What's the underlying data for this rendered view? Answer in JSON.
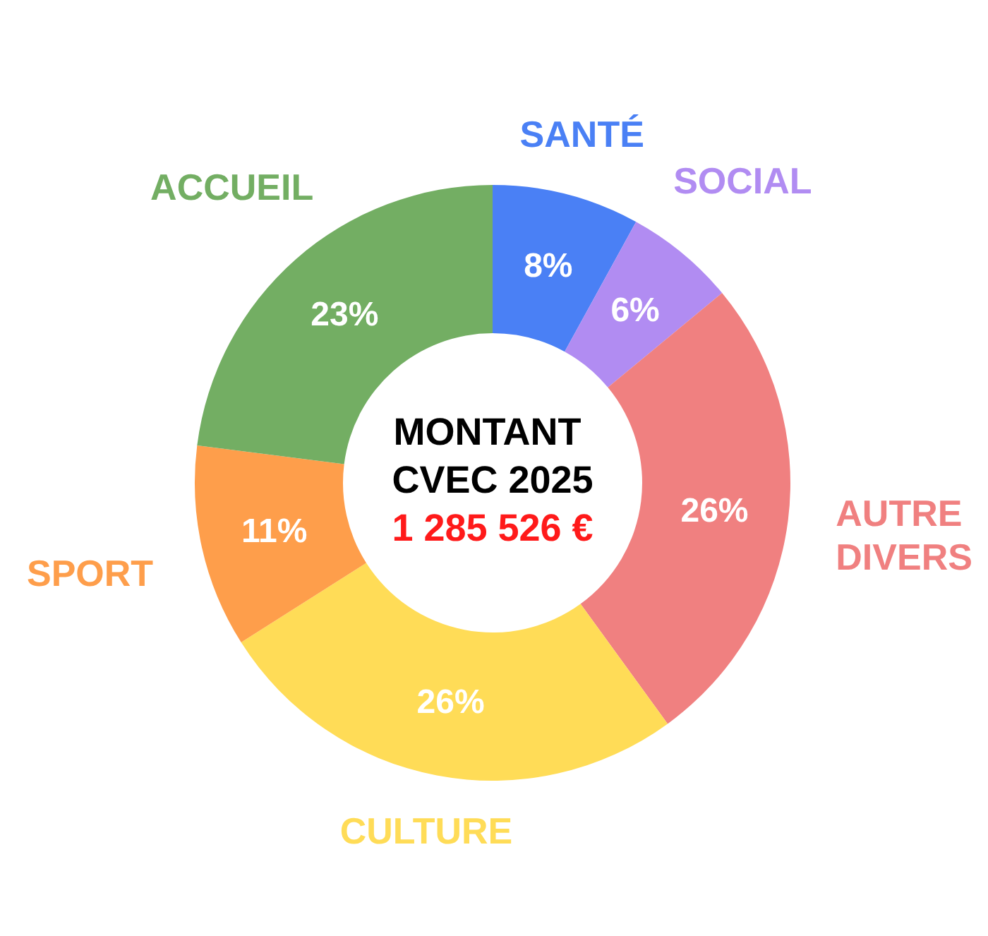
{
  "chart_data": {
    "type": "donut",
    "title": "MONTANT CVEC 2025",
    "subtitle": "1 285 526 €",
    "categories": [
      "SANTÉ",
      "SOCIAL",
      "AUTRE DIVERS",
      "CULTURE",
      "SPORT",
      "ACCUEIL"
    ],
    "values": [
      8,
      6,
      26,
      26,
      11,
      23
    ],
    "colors": [
      "#4a80f5",
      "#b18cf2",
      "#f08080",
      "#ffdc57",
      "#fe9e4b",
      "#73ae63"
    ],
    "value_labels": [
      "8%",
      "6%",
      "26%",
      "26%",
      "11%",
      "23%"
    ]
  }
}
